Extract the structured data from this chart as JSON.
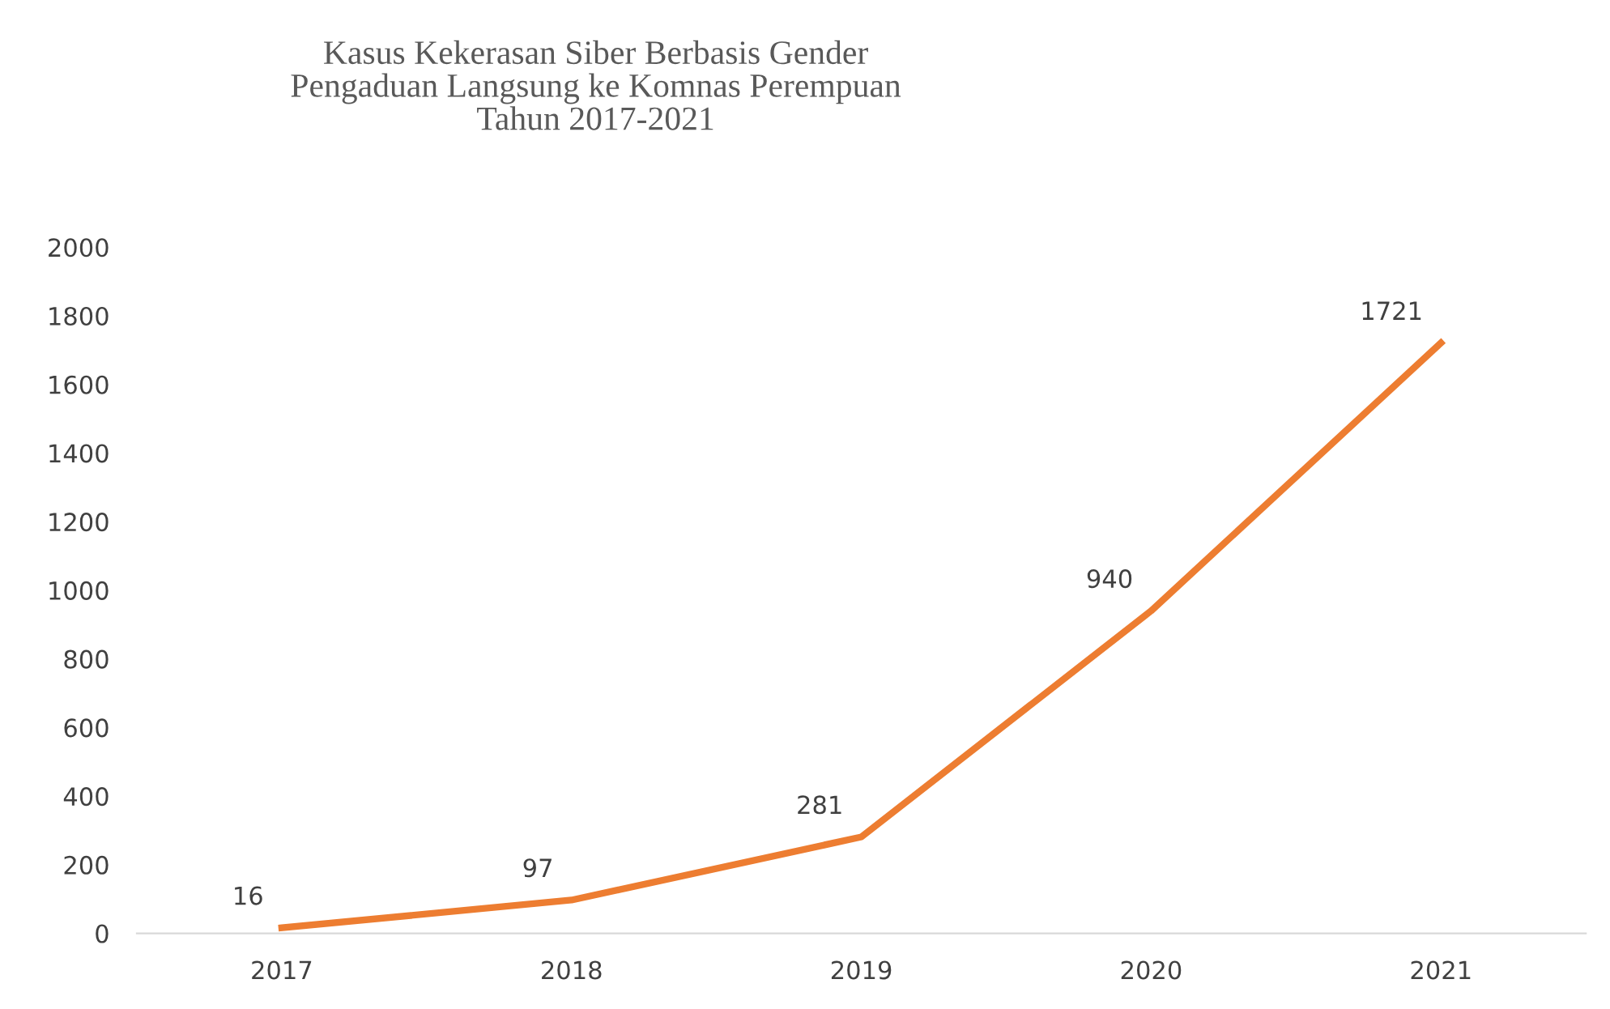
{
  "chart_data": {
    "type": "line",
    "title": "Kasus Kekerasan Siber Berbasis Gender\nPengaduan Langsung ke Komnas Perempuan\nTahun 2017-2021",
    "categories": [
      "2017",
      "2018",
      "2019",
      "2020",
      "2021"
    ],
    "series": [
      {
        "color": "#ed7d31",
        "values": [
          16,
          97,
          281,
          940,
          1721
        ]
      }
    ],
    "ylim": [
      0,
      2000
    ],
    "yticks": [
      0,
      200,
      400,
      600,
      800,
      1000,
      1200,
      1400,
      1600,
      1800,
      2000
    ],
    "grid": false,
    "legend": false,
    "marker": "none",
    "line_style": "solid",
    "data_labels": true
  }
}
